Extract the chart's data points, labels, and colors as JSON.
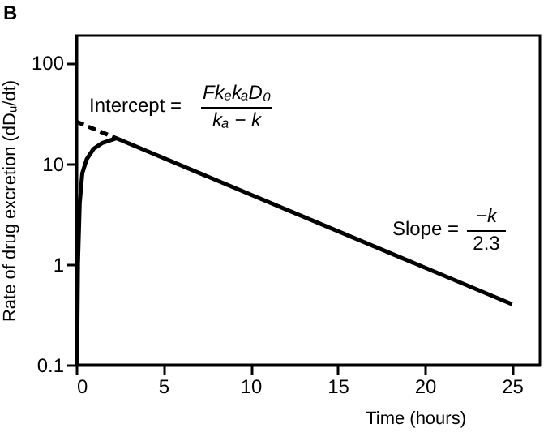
{
  "chart_data": {
    "type": "line",
    "xlabel": "Time (hours)",
    "ylabel": "Rate of drug excretion (dDᵤ/dt)",
    "series": [
      {
        "color": "#000000",
        "line_style": "solid",
        "x": [
          0.05,
          0.1,
          0.2,
          0.35,
          0.6,
          1,
          1.5,
          2.3,
          25
        ],
        "values": [
          0.1,
          1,
          4,
          8,
          11,
          14,
          16,
          17.8,
          0.4
        ]
      },
      {
        "color": "#000000",
        "line_style": "dashed",
        "x": [
          0,
          2.3
        ],
        "values": [
          26,
          17.8
        ]
      }
    ],
    "log": "y",
    "xlim": [
      0,
      26.6
    ],
    "ylim": [
      0.1,
      186
    ],
    "xticks": [
      0,
      5,
      10,
      15,
      20,
      25
    ],
    "yticks": [
      0.1,
      1,
      10,
      100
    ],
    "grid": false,
    "marker": "none",
    "annotations": [
      "B",
      "Intercept =",
      "FkₑkₐD₀",
      "kₐ − k",
      "Slope =",
      "−k",
      "2.3"
    ]
  }
}
